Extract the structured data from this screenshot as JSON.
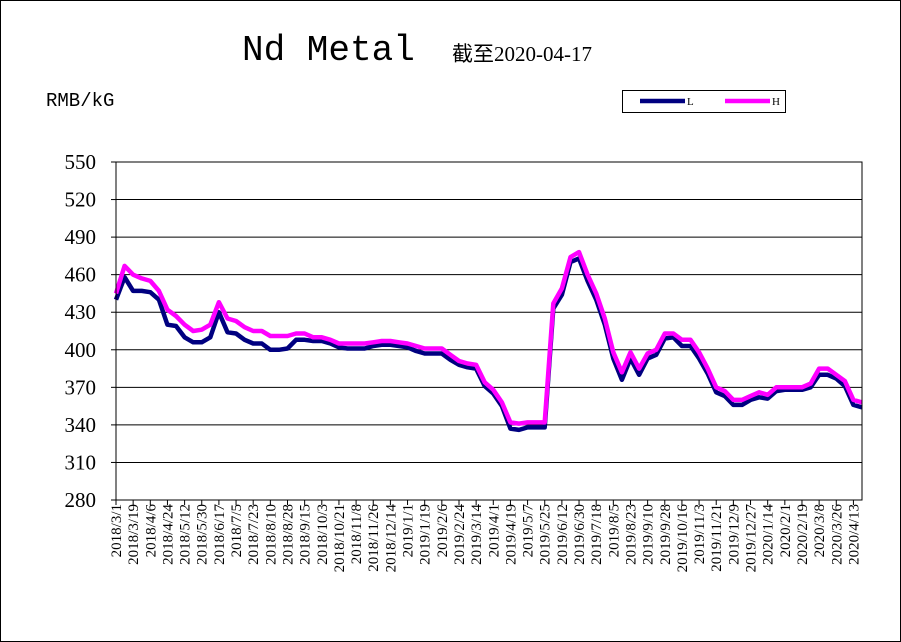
{
  "chart_data": {
    "type": "line",
    "title": "Nd Metal",
    "subtitle": "截至2020-04-17",
    "y_label": "RMB/kG",
    "categories": [
      "2018/3/1",
      null,
      "2018/3/19",
      null,
      "2018/4/6",
      null,
      "2018/4/24",
      null,
      "2018/5/12",
      null,
      "2018/5/30",
      null,
      "2018/6/17",
      null,
      "2018/7/5",
      null,
      "2018/7/23",
      null,
      "2018/8/10",
      null,
      "2018/8/28",
      null,
      "2018/9/15",
      null,
      "2018/10/3",
      null,
      "2018/10/21",
      null,
      "2018/11/8",
      null,
      "2018/11/26",
      null,
      "2018/12/14",
      null,
      "2019/1/1",
      null,
      "2019/1/19",
      null,
      "2019/2/6",
      null,
      "2019/2/24",
      null,
      "2019/3/14",
      null,
      "2019/4/1",
      null,
      "2019/4/19",
      null,
      "2019/5/7",
      null,
      "2019/5/25",
      null,
      "2019/6/12",
      null,
      "2019/6/30",
      null,
      "2019/7/18",
      null,
      "2019/8/5",
      null,
      "2019/8/23",
      null,
      "2019/9/10",
      null,
      "2019/9/28",
      null,
      "2019/10/16",
      null,
      "2019/11/3",
      null,
      "2019/11/21",
      null,
      "2019/12/9",
      null,
      "2019/12/27",
      null,
      "2020/1/14",
      null,
      "2020/2/1",
      null,
      "2020/2/19",
      null,
      "2020/3/8",
      null,
      "2020/3/26",
      null,
      "2020/4/13",
      null
    ],
    "series": [
      {
        "name": "L",
        "color": "#000080",
        "values": [
          440,
          458,
          447,
          447,
          446,
          440,
          420,
          419,
          410,
          406,
          406,
          410,
          430,
          414,
          413,
          408,
          405,
          405,
          400,
          400,
          401,
          408,
          408,
          407,
          407,
          405,
          402,
          401,
          401,
          401,
          403,
          404,
          404,
          403,
          402,
          399,
          397,
          397,
          397,
          392,
          388,
          386,
          385,
          371,
          365,
          355,
          337,
          336,
          338,
          338,
          338,
          433,
          444,
          470,
          473,
          455,
          440,
          420,
          393,
          376,
          393,
          380,
          393,
          396,
          409,
          410,
          403,
          403,
          393,
          381,
          366,
          363,
          356,
          356,
          360,
          362,
          361,
          367,
          368,
          368,
          368,
          370,
          380,
          380,
          377,
          371,
          356,
          354
        ]
      },
      {
        "name": "H",
        "color": "#ff00ff",
        "values": [
          445,
          467,
          460,
          457,
          455,
          447,
          432,
          427,
          420,
          415,
          416,
          420,
          438,
          425,
          423,
          418,
          415,
          415,
          411,
          411,
          411,
          413,
          413,
          410,
          410,
          408,
          405,
          405,
          405,
          405,
          406,
          407,
          407,
          406,
          405,
          403,
          401,
          401,
          401,
          396,
          391,
          389,
          388,
          374,
          368,
          358,
          342,
          341,
          342,
          342,
          342,
          437,
          449,
          474,
          478,
          460,
          445,
          425,
          398,
          382,
          398,
          385,
          397,
          400,
          413,
          413,
          408,
          408,
          398,
          385,
          370,
          367,
          360,
          360,
          363,
          366,
          364,
          370,
          370,
          370,
          370,
          373,
          385,
          385,
          380,
          375,
          360,
          358
        ]
      }
    ],
    "ylim": [
      280,
      550
    ],
    "yticks": [
      280,
      310,
      340,
      370,
      400,
      430,
      460,
      490,
      520,
      550
    ],
    "grid": true,
    "legend": "top-right"
  }
}
